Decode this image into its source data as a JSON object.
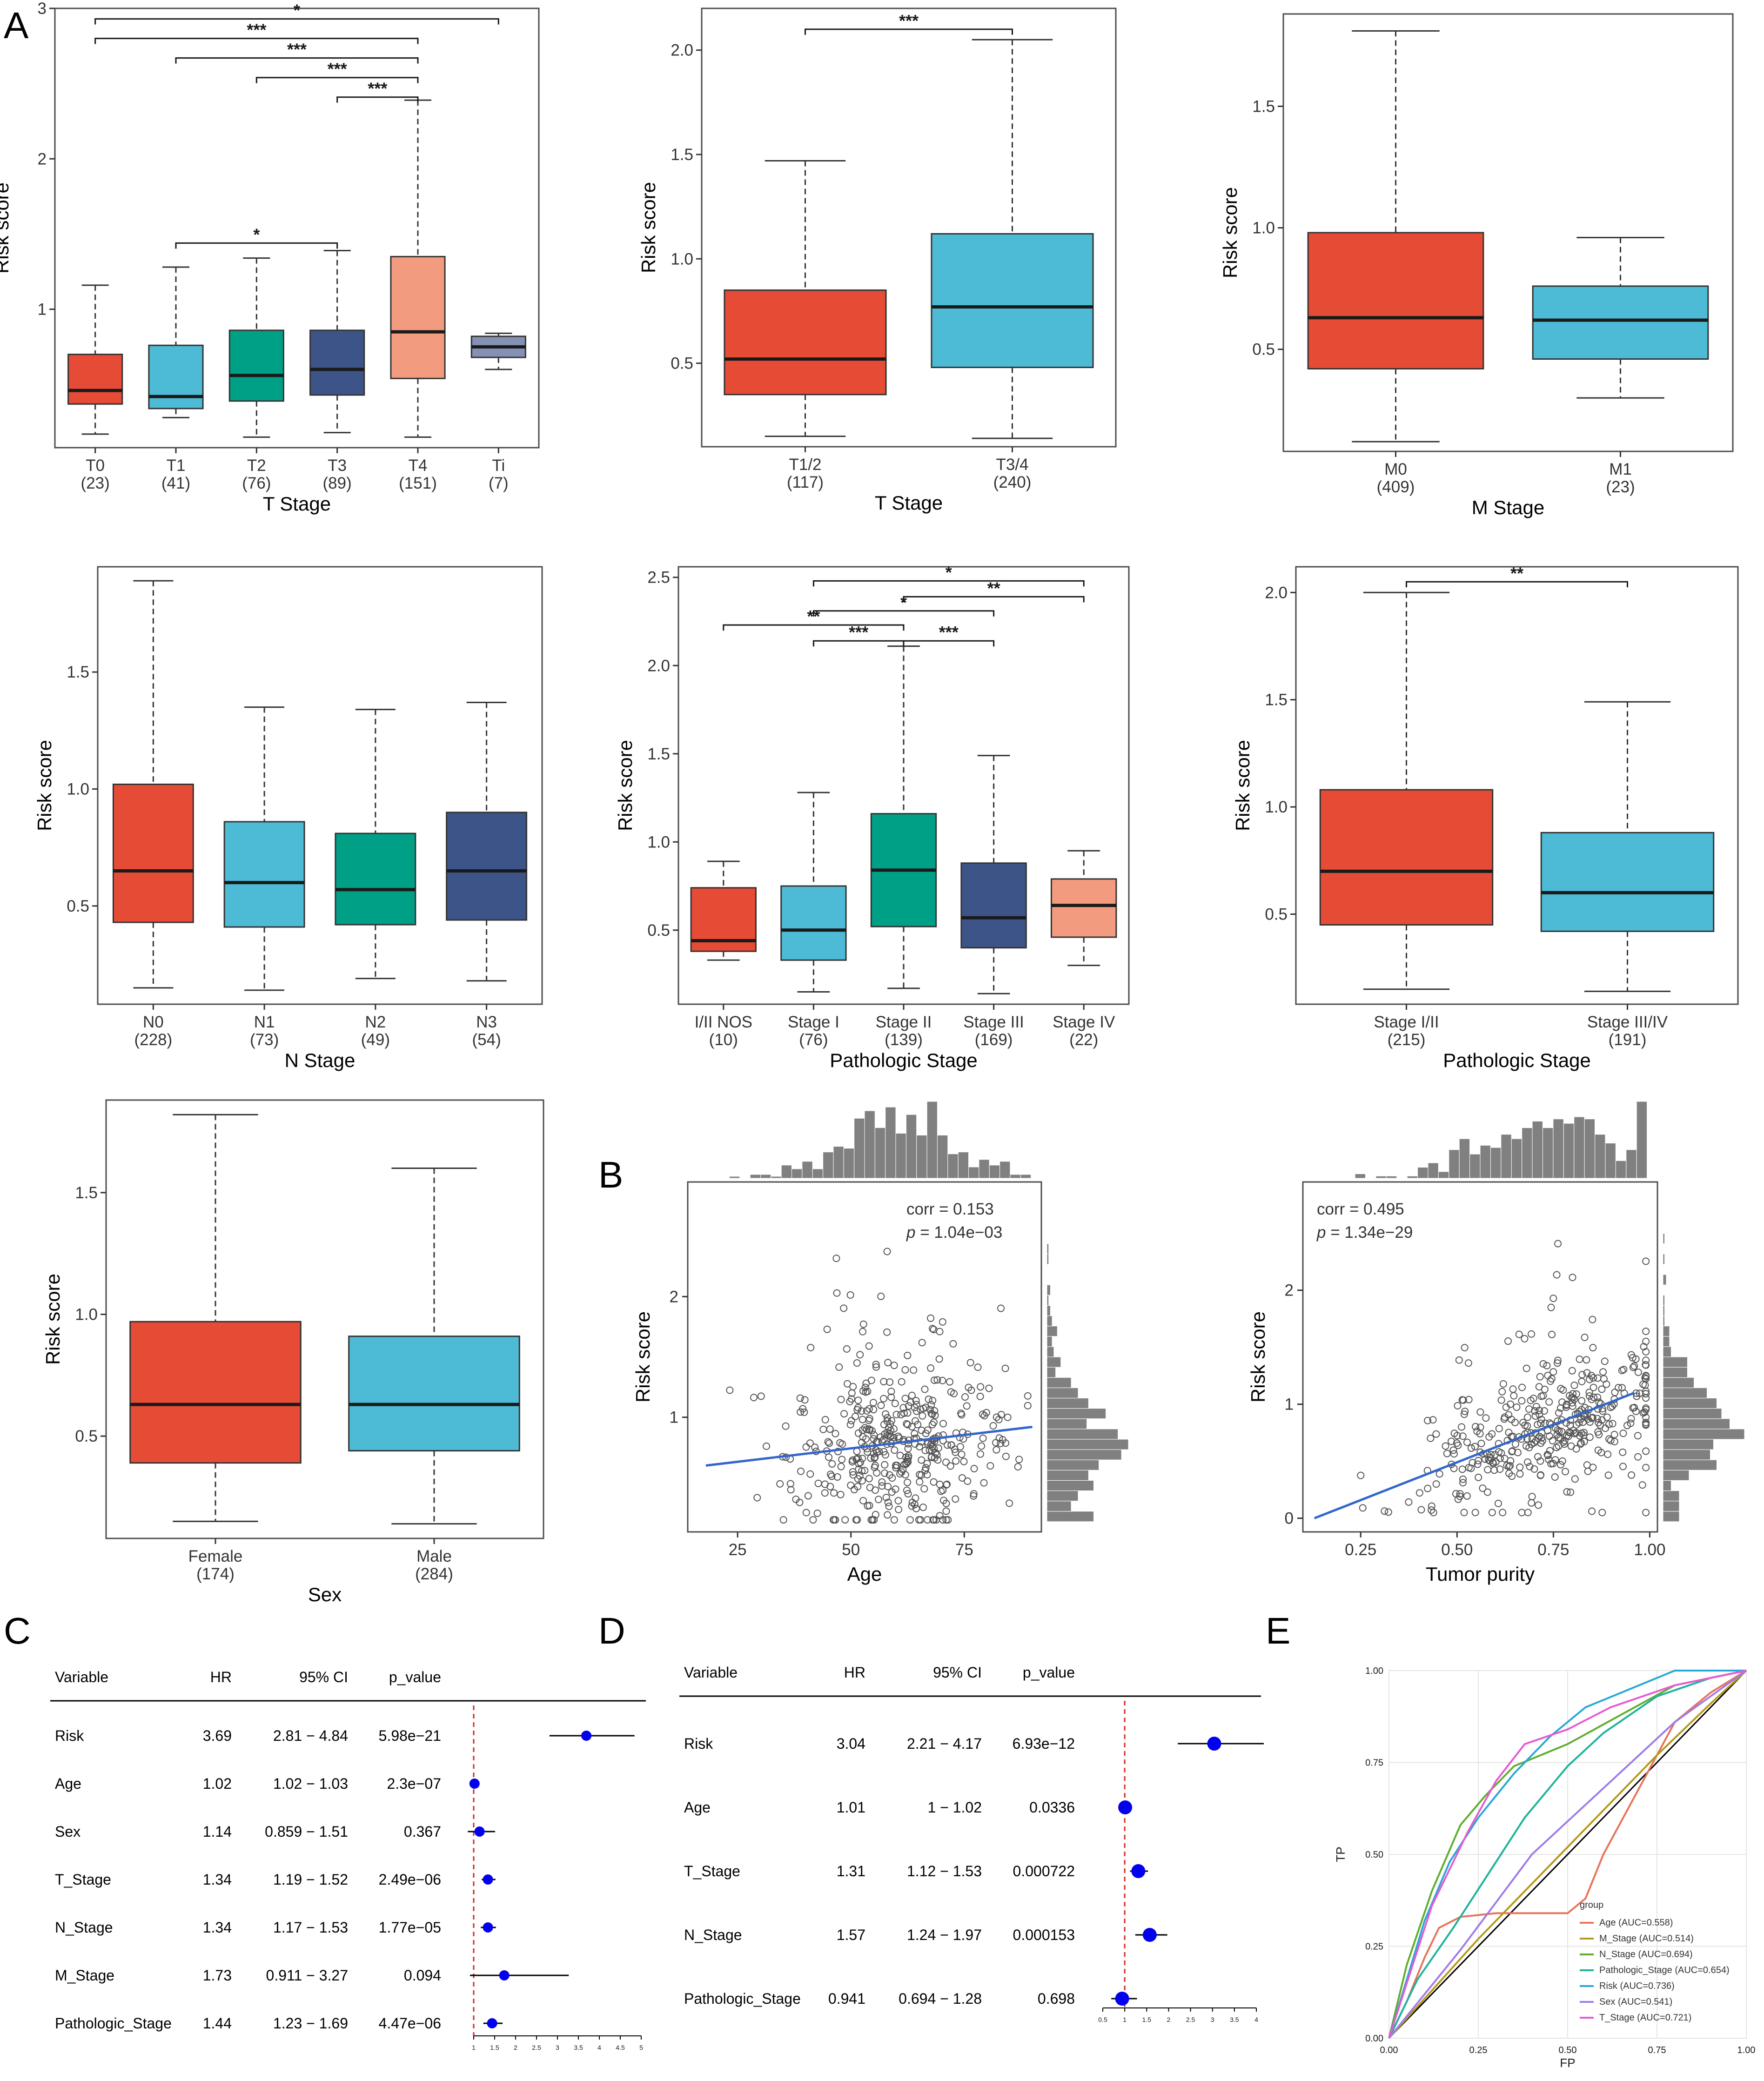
{
  "colors": {
    "c1": "#E64B35",
    "c2": "#4DBBD5",
    "c3": "#00A087",
    "c4": "#3C5488",
    "c5": "#F39B7F",
    "c6": "#8491B4"
  },
  "panel_letters": [
    "A",
    "B",
    "C",
    "D",
    "E"
  ],
  "chart_data": [
    {
      "id": "tstage",
      "type": "box",
      "xlabel": "T Stage",
      "ylabel": "Risk score",
      "ylim": [
        0.08,
        3.0
      ],
      "yticks": [
        "1",
        "2",
        "3"
      ],
      "groups": [
        {
          "label": "T0",
          "n": "(23)",
          "color": "#E64B35",
          "min": 0.17,
          "q1": 0.37,
          "med": 0.46,
          "q3": 0.7,
          "max": 1.16
        },
        {
          "label": "T1",
          "n": "(41)",
          "color": "#4DBBD5",
          "min": 0.28,
          "q1": 0.34,
          "med": 0.42,
          "q3": 0.76,
          "max": 1.28
        },
        {
          "label": "T2",
          "n": "(76)",
          "color": "#00A087",
          "min": 0.15,
          "q1": 0.39,
          "med": 0.56,
          "q3": 0.86,
          "max": 1.34
        },
        {
          "label": "T3",
          "n": "(89)",
          "color": "#3C5488",
          "min": 0.18,
          "q1": 0.43,
          "med": 0.6,
          "q3": 0.86,
          "max": 1.39
        },
        {
          "label": "T4",
          "n": "(151)",
          "color": "#F39B7F",
          "min": 0.15,
          "q1": 0.54,
          "med": 0.85,
          "q3": 1.35,
          "max": 2.39
        },
        {
          "label": "Ti",
          "n": "(7)",
          "color": "#8491B4",
          "min": 0.6,
          "q1": 0.68,
          "med": 0.75,
          "q3": 0.82,
          "max": 0.84
        }
      ],
      "brackets": [
        {
          "a": 0,
          "b": 5,
          "y": 2.93,
          "label": "*"
        },
        {
          "a": 0,
          "b": 4,
          "y": 2.8,
          "label": "***"
        },
        {
          "a": 1,
          "b": 4,
          "y": 2.67,
          "label": "***"
        },
        {
          "a": 2,
          "b": 4,
          "y": 2.54,
          "label": "***"
        },
        {
          "a": 3,
          "b": 4,
          "y": 2.41,
          "label": "***"
        },
        {
          "a": 1,
          "b": 3,
          "y": 1.44,
          "label": "*"
        }
      ]
    },
    {
      "id": "tstage2",
      "type": "box",
      "xlabel": "T Stage",
      "ylabel": "Risk score",
      "ylim": [
        0.1,
        2.2
      ],
      "yticks": [
        "0.5",
        "1.0",
        "1.5",
        "2.0"
      ],
      "groups": [
        {
          "label": "T1/2",
          "n": "(117)",
          "color": "#E64B35",
          "min": 0.15,
          "q1": 0.35,
          "med": 0.52,
          "q3": 0.85,
          "max": 1.47
        },
        {
          "label": "T3/4",
          "n": "(240)",
          "color": "#4DBBD5",
          "min": 0.14,
          "q1": 0.48,
          "med": 0.77,
          "q3": 1.12,
          "max": 2.05
        }
      ],
      "brackets": [
        {
          "a": 0,
          "b": 1,
          "y": 2.1,
          "label": "***"
        }
      ]
    },
    {
      "id": "mstage",
      "type": "box",
      "xlabel": "M Stage",
      "ylabel": "Risk score",
      "ylim": [
        0.08,
        1.88
      ],
      "yticks": [
        "0.5",
        "1.0",
        "1.5"
      ],
      "groups": [
        {
          "label": "M0",
          "n": "(409)",
          "color": "#E64B35",
          "min": 0.12,
          "q1": 0.42,
          "med": 0.63,
          "q3": 0.98,
          "max": 1.81
        },
        {
          "label": "M1",
          "n": "(23)",
          "color": "#4DBBD5",
          "min": 0.3,
          "q1": 0.46,
          "med": 0.62,
          "q3": 0.76,
          "max": 0.96
        }
      ],
      "brackets": []
    },
    {
      "id": "nstage",
      "type": "box",
      "xlabel": "N Stage",
      "ylabel": "Risk score",
      "ylim": [
        0.08,
        1.95
      ],
      "yticks": [
        "0.5",
        "1.0",
        "1.5"
      ],
      "groups": [
        {
          "label": "N0",
          "n": "(228)",
          "color": "#E64B35",
          "min": 0.15,
          "q1": 0.43,
          "med": 0.65,
          "q3": 1.02,
          "max": 1.89
        },
        {
          "label": "N1",
          "n": "(73)",
          "color": "#4DBBD5",
          "min": 0.14,
          "q1": 0.41,
          "med": 0.6,
          "q3": 0.86,
          "max": 1.35
        },
        {
          "label": "N2",
          "n": "(49)",
          "color": "#00A087",
          "min": 0.19,
          "q1": 0.42,
          "med": 0.57,
          "q3": 0.81,
          "max": 1.34
        },
        {
          "label": "N3",
          "n": "(54)",
          "color": "#3C5488",
          "min": 0.18,
          "q1": 0.44,
          "med": 0.65,
          "q3": 0.9,
          "max": 1.37
        }
      ],
      "brackets": []
    },
    {
      "id": "pstage",
      "type": "box",
      "xlabel": "Pathologic Stage",
      "ylabel": "Risk score",
      "ylim": [
        0.08,
        2.56
      ],
      "yticks": [
        "0.5",
        "1.0",
        "1.5",
        "2.0",
        "2.5"
      ],
      "groups": [
        {
          "label": "I/II NOS",
          "n": "(10)",
          "color": "#E64B35",
          "min": 0.33,
          "q1": 0.38,
          "med": 0.44,
          "q3": 0.74,
          "max": 0.89
        },
        {
          "label": "Stage I",
          "n": "(76)",
          "color": "#4DBBD5",
          "min": 0.15,
          "q1": 0.33,
          "med": 0.5,
          "q3": 0.75,
          "max": 1.28
        },
        {
          "label": "Stage II",
          "n": "(139)",
          "color": "#00A087",
          "min": 0.17,
          "q1": 0.52,
          "med": 0.84,
          "q3": 1.16,
          "max": 2.11
        },
        {
          "label": "Stage III",
          "n": "(169)",
          "color": "#3C5488",
          "min": 0.14,
          "q1": 0.4,
          "med": 0.57,
          "q3": 0.88,
          "max": 1.49
        },
        {
          "label": "Stage IV",
          "n": "(22)",
          "color": "#F39B7F",
          "min": 0.3,
          "q1": 0.46,
          "med": 0.64,
          "q3": 0.79,
          "max": 0.95
        }
      ],
      "brackets": [
        {
          "a": 1,
          "b": 4,
          "y": 2.48,
          "label": "*"
        },
        {
          "a": 2,
          "b": 4,
          "y": 2.39,
          "label": "**"
        },
        {
          "a": 1,
          "b": 3,
          "y": 2.31,
          "label": "*"
        },
        {
          "a": 0,
          "b": 2,
          "y": 2.23,
          "label": "**"
        },
        {
          "a": 1,
          "b": 2,
          "y": 2.14,
          "label": "***"
        },
        {
          "a": 2,
          "b": 3,
          "y": 2.14,
          "label": "***"
        }
      ]
    },
    {
      "id": "pstage2",
      "type": "box",
      "xlabel": "Pathologic Stage",
      "ylabel": "Risk score",
      "ylim": [
        0.08,
        2.12
      ],
      "yticks": [
        "0.5",
        "1.0",
        "1.5",
        "2.0"
      ],
      "groups": [
        {
          "label": "Stage I/II",
          "n": "(215)",
          "color": "#E64B35",
          "min": 0.15,
          "q1": 0.45,
          "med": 0.7,
          "q3": 1.08,
          "max": 2.0
        },
        {
          "label": "Stage III/IV",
          "n": "(191)",
          "color": "#4DBBD5",
          "min": 0.14,
          "q1": 0.42,
          "med": 0.6,
          "q3": 0.88,
          "max": 1.49
        }
      ],
      "brackets": [
        {
          "a": 0,
          "b": 1,
          "y": 2.05,
          "label": "**"
        }
      ]
    },
    {
      "id": "sex",
      "type": "box",
      "xlabel": "Sex",
      "ylabel": "Risk score",
      "ylim": [
        0.08,
        1.88
      ],
      "yticks": [
        "0.5",
        "1.0",
        "1.5"
      ],
      "groups": [
        {
          "label": "Female",
          "n": "(174)",
          "color": "#E64B35",
          "min": 0.15,
          "q1": 0.39,
          "med": 0.63,
          "q3": 0.97,
          "max": 1.82
        },
        {
          "label": "Male",
          "n": "(284)",
          "color": "#4DBBD5",
          "min": 0.14,
          "q1": 0.44,
          "med": 0.63,
          "q3": 0.91,
          "max": 1.6
        }
      ],
      "brackets": []
    },
    {
      "id": "age",
      "type": "scatter",
      "xlabel": "Age",
      "ylabel": "Risk score",
      "xlim": [
        14,
        92
      ],
      "ylim": [
        0.05,
        2.95
      ],
      "xticks": [
        25,
        50,
        75
      ],
      "yticks": [
        1,
        2
      ],
      "corr": "corr = 0.153",
      "p_prefix": "p",
      "p_value": " = 1.04e−03",
      "fit": {
        "x0": 18,
        "y0": 0.6,
        "x1": 90,
        "y1": 0.92
      },
      "n_points": 420,
      "seed": 17,
      "gen": "age"
    },
    {
      "id": "purity",
      "type": "scatter",
      "xlabel": "Tumor purity",
      "ylabel": "Risk score",
      "xlim": [
        0.1,
        1.02
      ],
      "ylim": [
        -0.12,
        2.95
      ],
      "xticks": [
        0.25,
        0.5,
        0.75,
        1.0
      ],
      "xticklabels": [
        "0.25",
        "0.50",
        "0.75",
        "1.00"
      ],
      "yticks": [
        0,
        1,
        2
      ],
      "corr": "corr = 0.495",
      "p_prefix": "p",
      "p_value": " = 1.34e−29",
      "fit": {
        "x0": 0.13,
        "y0": 0.0,
        "x1": 0.96,
        "y1": 1.1
      },
      "n_points": 400,
      "seed": 29,
      "gen": "purity"
    },
    {
      "id": "uni",
      "type": "forest",
      "headers": [
        "Variable",
        "HR",
        "95% CI",
        "p_value"
      ],
      "rows": [
        {
          "var": "Risk",
          "hr": "3.69",
          "ci": "2.81 − 4.84",
          "p": "5.98e−21",
          "est": 3.69,
          "lo": 2.81,
          "hi": 4.84
        },
        {
          "var": "Age",
          "hr": "1.02",
          "ci": "1.02 − 1.03",
          "p": "2.3e−07",
          "est": 1.02,
          "lo": 1.02,
          "hi": 1.03
        },
        {
          "var": "Sex",
          "hr": "1.14",
          "ci": "0.859 − 1.51",
          "p": "0.367",
          "est": 1.14,
          "lo": 0.859,
          "hi": 1.51
        },
        {
          "var": "T_Stage",
          "hr": "1.34",
          "ci": "1.19 − 1.52",
          "p": "2.49e−06",
          "est": 1.34,
          "lo": 1.19,
          "hi": 1.52
        },
        {
          "var": "N_Stage",
          "hr": "1.34",
          "ci": "1.17 − 1.53",
          "p": "1.77e−05",
          "est": 1.34,
          "lo": 1.17,
          "hi": 1.53
        },
        {
          "var": "M_Stage",
          "hr": "1.73",
          "ci": "0.911 − 3.27",
          "p": "0.094",
          "est": 1.73,
          "lo": 0.911,
          "hi": 3.27
        },
        {
          "var": "Pathologic_Stage",
          "hr": "1.44",
          "ci": "1.23 − 1.69",
          "p": "4.47e−06",
          "est": 1.44,
          "lo": 1.23,
          "hi": 1.69
        }
      ],
      "xlim": [
        1,
        5
      ],
      "ticks": [
        "1",
        "1.5",
        "2",
        "2.5",
        "3",
        "3.5",
        "4",
        "4.5",
        "5"
      ]
    },
    {
      "id": "multi",
      "type": "forest",
      "headers": [
        "Variable",
        "HR",
        "95% CI",
        "p_value"
      ],
      "rows": [
        {
          "var": "Risk",
          "hr": "3.04",
          "ci": "2.21 − 4.17",
          "p": "6.93e−12",
          "est": 3.04,
          "lo": 2.21,
          "hi": 4.17
        },
        {
          "var": "Age",
          "hr": "1.01",
          "ci": "1 − 1.02",
          "p": "0.0336",
          "est": 1.01,
          "lo": 1.0,
          "hi": 1.02
        },
        {
          "var": "T_Stage",
          "hr": "1.31",
          "ci": "1.12 − 1.53",
          "p": "0.000722",
          "est": 1.31,
          "lo": 1.12,
          "hi": 1.53
        },
        {
          "var": "N_Stage",
          "hr": "1.57",
          "ci": "1.24 − 1.97",
          "p": "0.000153",
          "est": 1.57,
          "lo": 1.24,
          "hi": 1.97
        },
        {
          "var": "Pathologic_Stage",
          "hr": "0.941",
          "ci": "0.694 − 1.28",
          "p": "0.698",
          "est": 0.941,
          "lo": 0.694,
          "hi": 1.28
        }
      ],
      "xlim": [
        0.5,
        4
      ],
      "ticks": [
        "0.5",
        "1",
        "1.5",
        "2",
        "2.5",
        "3",
        "3.5",
        "4"
      ]
    },
    {
      "id": "roc",
      "type": "line",
      "xlabel": "FP",
      "ylabel": "TP",
      "xlim": [
        0,
        1
      ],
      "ylim": [
        0,
        1
      ],
      "ticks": [
        "0.00",
        "0.25",
        "0.50",
        "0.75",
        "1.00"
      ],
      "legend_title": "group",
      "series": [
        {
          "name": "Age (AUC=0.558)",
          "color": "#E8735A",
          "points": [
            [
              0,
              0
            ],
            [
              0.05,
              0.1
            ],
            [
              0.1,
              0.22
            ],
            [
              0.14,
              0.3
            ],
            [
              0.2,
              0.33
            ],
            [
              0.3,
              0.34
            ],
            [
              0.5,
              0.34
            ],
            [
              0.55,
              0.38
            ],
            [
              0.6,
              0.5
            ],
            [
              0.7,
              0.68
            ],
            [
              0.8,
              0.86
            ],
            [
              0.9,
              0.94
            ],
            [
              1,
              1
            ]
          ]
        },
        {
          "name": "M_Stage (AUC=0.514)",
          "color": "#B59A1A",
          "points": [
            [
              0,
              0
            ],
            [
              0.25,
              0.27
            ],
            [
              0.5,
              0.52
            ],
            [
              0.75,
              0.77
            ],
            [
              0.9,
              0.91
            ],
            [
              1,
              1
            ]
          ]
        },
        {
          "name": "N_Stage (AUC=0.694)",
          "color": "#5FAE2E",
          "points": [
            [
              0,
              0
            ],
            [
              0.05,
              0.2
            ],
            [
              0.12,
              0.4
            ],
            [
              0.2,
              0.58
            ],
            [
              0.27,
              0.66
            ],
            [
              0.35,
              0.74
            ],
            [
              0.5,
              0.8
            ],
            [
              0.65,
              0.88
            ],
            [
              0.8,
              0.96
            ],
            [
              1,
              1
            ]
          ]
        },
        {
          "name": "Pathologic_Stage (AUC=0.654)",
          "color": "#1EB39A",
          "points": [
            [
              0,
              0
            ],
            [
              0.08,
              0.16
            ],
            [
              0.18,
              0.3
            ],
            [
              0.28,
              0.45
            ],
            [
              0.38,
              0.6
            ],
            [
              0.5,
              0.74
            ],
            [
              0.6,
              0.83
            ],
            [
              0.75,
              0.93
            ],
            [
              0.9,
              0.98
            ],
            [
              1,
              1
            ]
          ]
        },
        {
          "name": "Risk (AUC=0.736)",
          "color": "#26A8D8",
          "points": [
            [
              0,
              0
            ],
            [
              0.05,
              0.16
            ],
            [
              0.1,
              0.32
            ],
            [
              0.17,
              0.48
            ],
            [
              0.25,
              0.6
            ],
            [
              0.35,
              0.72
            ],
            [
              0.45,
              0.82
            ],
            [
              0.55,
              0.9
            ],
            [
              0.7,
              0.96
            ],
            [
              0.8,
              1
            ],
            [
              1,
              1
            ]
          ]
        },
        {
          "name": "Sex (AUC=0.541)",
          "color": "#A07BE8",
          "points": [
            [
              0,
              0
            ],
            [
              0.2,
              0.24
            ],
            [
              0.4,
              0.5
            ],
            [
              0.6,
              0.68
            ],
            [
              0.8,
              0.86
            ],
            [
              1,
              1
            ]
          ]
        },
        {
          "name": "T_Stage (AUC=0.721)",
          "color": "#E65BD3",
          "points": [
            [
              0,
              0
            ],
            [
              0.05,
              0.15
            ],
            [
              0.12,
              0.36
            ],
            [
              0.22,
              0.56
            ],
            [
              0.3,
              0.7
            ],
            [
              0.38,
              0.8
            ],
            [
              0.5,
              0.84
            ],
            [
              0.62,
              0.9
            ],
            [
              0.8,
              0.96
            ],
            [
              1,
              1
            ]
          ]
        }
      ]
    }
  ]
}
